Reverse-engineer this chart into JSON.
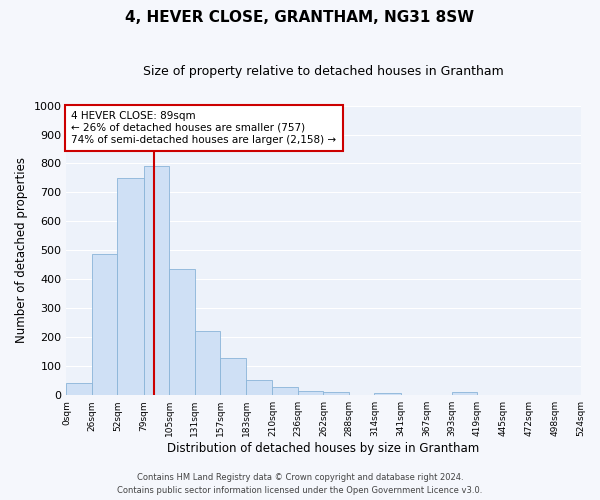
{
  "title": "4, HEVER CLOSE, GRANTHAM, NG31 8SW",
  "subtitle": "Size of property relative to detached houses in Grantham",
  "xlabel": "Distribution of detached houses by size in Grantham",
  "ylabel": "Number of detached properties",
  "bar_color": "#cfe0f5",
  "bar_edge_color": "#8ab4d8",
  "bins": [
    0,
    26,
    52,
    79,
    105,
    131,
    157,
    183,
    210,
    236,
    262,
    288,
    314,
    341,
    367,
    393,
    419,
    445,
    472,
    498,
    524
  ],
  "counts": [
    42,
    487,
    750,
    790,
    437,
    220,
    128,
    52,
    28,
    14,
    10,
    0,
    8,
    0,
    0,
    10,
    0,
    0,
    0,
    0
  ],
  "tick_labels": [
    "0sqm",
    "26sqm",
    "52sqm",
    "79sqm",
    "105sqm",
    "131sqm",
    "157sqm",
    "183sqm",
    "210sqm",
    "236sqm",
    "262sqm",
    "288sqm",
    "314sqm",
    "341sqm",
    "367sqm",
    "393sqm",
    "419sqm",
    "445sqm",
    "472sqm",
    "498sqm",
    "524sqm"
  ],
  "ylim": [
    0,
    1000
  ],
  "yticks": [
    0,
    100,
    200,
    300,
    400,
    500,
    600,
    700,
    800,
    900,
    1000
  ],
  "red_line_x": 89,
  "annotation_title": "4 HEVER CLOSE: 89sqm",
  "annotation_line1": "← 26% of detached houses are smaller (757)",
  "annotation_line2": "74% of semi-detached houses are larger (2,158) →",
  "annotation_box_color": "#ffffff",
  "annotation_box_edge": "#cc0000",
  "background_color": "#edf2fa",
  "grid_color": "#ffffff",
  "footer1": "Contains HM Land Registry data © Crown copyright and database right 2024.",
  "footer2": "Contains public sector information licensed under the Open Government Licence v3.0."
}
